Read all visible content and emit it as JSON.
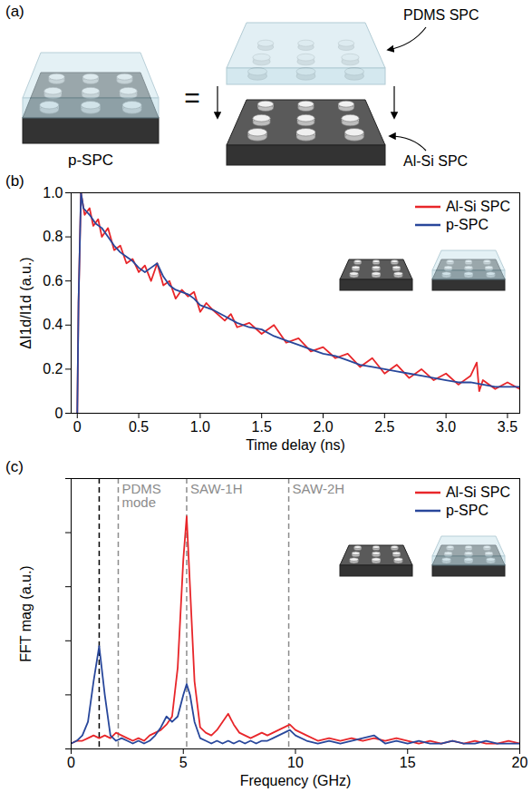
{
  "diagram": {
    "panel_label": "(a)",
    "left_label": "p-SPC",
    "equals": "=",
    "top_label": "PDMS SPC",
    "bottom_label": "Al-Si SPC"
  },
  "chart_data": [
    {
      "panel_label": "(b)",
      "type": "line",
      "xlabel": "Time delay (ns)",
      "ylabel": "ΔI1d/I1d (a.u.)",
      "xlim": [
        -0.05,
        3.6
      ],
      "xticks": [
        0,
        0.5,
        {
          "value": 1,
          "label": "1.0"
        },
        1.5,
        {
          "value": 2,
          "label": "2.0"
        },
        2.5,
        {
          "value": 3,
          "label": "3.0"
        },
        3.5
      ],
      "ylim": [
        0,
        1
      ],
      "yticks": [
        0,
        0.2,
        0.4,
        0.6,
        0.8,
        {
          "value": 1,
          "label": "1.0"
        }
      ],
      "legend": "top-right",
      "series": [
        {
          "name": "Al-Si SPC",
          "color": "#e8262a",
          "x": [
            0,
            0.01,
            0.03,
            0.06,
            0.1,
            0.13,
            0.17,
            0.2,
            0.25,
            0.3,
            0.35,
            0.4,
            0.45,
            0.5,
            0.55,
            0.6,
            0.65,
            0.7,
            0.75,
            0.8,
            0.85,
            0.9,
            0.95,
            1.0,
            1.05,
            1.1,
            1.2,
            1.25,
            1.3,
            1.4,
            1.5,
            1.6,
            1.7,
            1.8,
            1.9,
            2.0,
            2.1,
            2.2,
            2.3,
            2.4,
            2.5,
            2.6,
            2.7,
            2.8,
            2.9,
            3.0,
            3.1,
            3.2,
            3.25,
            3.27,
            3.3,
            3.4,
            3.5,
            3.6
          ],
          "values": [
            0,
            0.5,
            1,
            0.9,
            0.93,
            0.85,
            0.88,
            0.8,
            0.84,
            0.74,
            0.76,
            0.68,
            0.7,
            0.64,
            0.67,
            0.6,
            0.68,
            0.58,
            0.6,
            0.52,
            0.56,
            0.53,
            0.55,
            0.46,
            0.5,
            0.47,
            0.42,
            0.45,
            0.39,
            0.41,
            0.36,
            0.4,
            0.32,
            0.34,
            0.28,
            0.3,
            0.25,
            0.27,
            0.21,
            0.25,
            0.18,
            0.22,
            0.16,
            0.2,
            0.15,
            0.18,
            0.13,
            0.17,
            0.23,
            0.1,
            0.15,
            0.11,
            0.14,
            0.11
          ]
        },
        {
          "name": "p-SPC",
          "color": "#28479b",
          "x": [
            0,
            0.01,
            0.03,
            0.05,
            0.1,
            0.15,
            0.2,
            0.25,
            0.3,
            0.35,
            0.4,
            0.45,
            0.5,
            0.55,
            0.6,
            0.65,
            0.7,
            0.75,
            0.8,
            0.85,
            0.9,
            0.95,
            1.0,
            1.1,
            1.2,
            1.3,
            1.4,
            1.5,
            1.6,
            1.7,
            1.8,
            1.9,
            2.0,
            2.1,
            2.2,
            2.3,
            2.4,
            2.5,
            2.6,
            2.7,
            2.8,
            2.9,
            3.0,
            3.1,
            3.2,
            3.3,
            3.4,
            3.5,
            3.6
          ],
          "values": [
            0,
            0.5,
            1,
            0.93,
            0.9,
            0.86,
            0.84,
            0.8,
            0.76,
            0.73,
            0.71,
            0.69,
            0.66,
            0.64,
            0.66,
            0.68,
            0.62,
            0.58,
            0.56,
            0.55,
            0.54,
            0.52,
            0.49,
            0.47,
            0.44,
            0.41,
            0.39,
            0.38,
            0.35,
            0.33,
            0.31,
            0.29,
            0.27,
            0.26,
            0.24,
            0.22,
            0.21,
            0.2,
            0.19,
            0.18,
            0.17,
            0.16,
            0.15,
            0.14,
            0.14,
            0.13,
            0.12,
            0.12,
            0.12
          ]
        }
      ]
    },
    {
      "panel_label": "(c)",
      "type": "line",
      "xlabel": "Frequency (GHz)",
      "ylabel": "FFT mag (a.u.)",
      "xlim": [
        0,
        20
      ],
      "xticks": [
        0,
        5,
        10,
        15,
        20
      ],
      "ylim": [
        0,
        1
      ],
      "yticks": [
        0,
        0.2,
        0.4,
        0.6,
        0.8,
        1
      ],
      "tick_labels": "x",
      "legend": "top-right",
      "vlines": [
        {
          "x": 1.25,
          "color": "#000000"
        },
        {
          "x": 2.1,
          "color": "#8c8c8c",
          "label": "PDMS mode"
        },
        {
          "x": 5.15,
          "color": "#8c8c8c",
          "label": "SAW-1H"
        },
        {
          "x": 9.7,
          "color": "#8c8c8c",
          "label": "SAW-2H"
        }
      ],
      "x": [
        0,
        0.25,
        0.5,
        0.75,
        1,
        1.25,
        1.5,
        1.75,
        2,
        2.25,
        2.5,
        2.75,
        3,
        3.25,
        3.5,
        3.75,
        4,
        4.25,
        4.5,
        4.75,
        5,
        5.15,
        5.3,
        5.5,
        5.75,
        6,
        6.25,
        6.5,
        6.75,
        7,
        7.25,
        7.5,
        7.75,
        8,
        8.25,
        8.5,
        8.75,
        9,
        9.25,
        9.5,
        9.75,
        10,
        10.5,
        11,
        11.5,
        12,
        12.5,
        13,
        13.5,
        14,
        14.5,
        15,
        15.5,
        16,
        16.5,
        17,
        17.5,
        18,
        18.5,
        19,
        19.5,
        20
      ],
      "series": [
        {
          "name": "Al-Si SPC",
          "color": "#e8262a",
          "values": [
            0.02,
            0.03,
            0.03,
            0.04,
            0.05,
            0.04,
            0.05,
            0.04,
            0.06,
            0.05,
            0.04,
            0.03,
            0.04,
            0.03,
            0.05,
            0.06,
            0.07,
            0.09,
            0.12,
            0.3,
            0.7,
            0.86,
            0.6,
            0.25,
            0.08,
            0.06,
            0.05,
            0.07,
            0.1,
            0.13,
            0.09,
            0.06,
            0.05,
            0.04,
            0.05,
            0.06,
            0.05,
            0.06,
            0.07,
            0.08,
            0.09,
            0.07,
            0.05,
            0.03,
            0.04,
            0.03,
            0.04,
            0.03,
            0.04,
            0.03,
            0.04,
            0.03,
            0.02,
            0.03,
            0.02,
            0.03,
            0.02,
            0.03,
            0.02,
            0.02,
            0.03,
            0.02
          ]
        },
        {
          "name": "p-SPC",
          "color": "#28479b",
          "values": [
            0.02,
            0.03,
            0.05,
            0.1,
            0.25,
            0.38,
            0.2,
            0.05,
            0.03,
            0.04,
            0.03,
            0.02,
            0.03,
            0.02,
            0.03,
            0.05,
            0.08,
            0.12,
            0.1,
            0.12,
            0.2,
            0.24,
            0.2,
            0.1,
            0.04,
            0.03,
            0.02,
            0.03,
            0.02,
            0.03,
            0.02,
            0.03,
            0.02,
            0.03,
            0.02,
            0.03,
            0.03,
            0.04,
            0.05,
            0.06,
            0.07,
            0.05,
            0.03,
            0.02,
            0.03,
            0.02,
            0.03,
            0.04,
            0.05,
            0.02,
            0.03,
            0.02,
            0.03,
            0.02,
            0.02,
            0.03,
            0.02,
            0.02,
            0.03,
            0.02,
            0.02,
            0.02
          ]
        }
      ]
    }
  ]
}
